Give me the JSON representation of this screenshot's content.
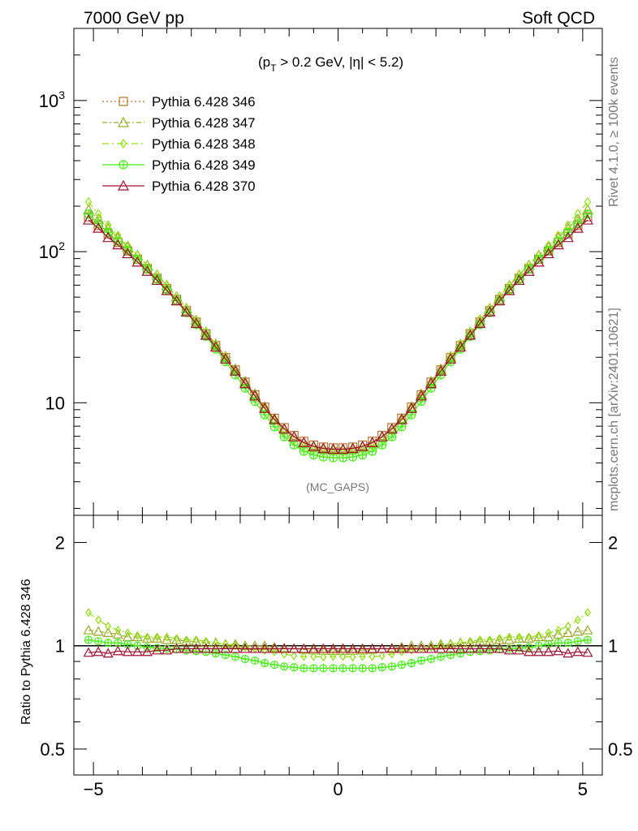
{
  "header": {
    "left": "7000 GeV pp",
    "right": "Soft QCD"
  },
  "annotations": {
    "cut_prefix": "(p",
    "cut_sub": "T",
    "cut_suffix": " > 0.2 GeV, |η| < 5.2)",
    "analysis": "(MC_GAPS)",
    "side_rivet": "Rivet 4.1.0, ≥ 100k events",
    "side_mcplots": "mcplots.cern.ch [arXiv:2401.10621]"
  },
  "ratio_ylabel": "Ratio to Pythia 6.428 346",
  "chart_data": [
    {
      "panel": "main",
      "type": "line",
      "yscale": "log",
      "xlim": [
        -5.4,
        5.4
      ],
      "ylim": [
        1.8,
        3000
      ],
      "x_tick_labels": [
        "−5",
        "0",
        "5"
      ],
      "y_tick_labels": [
        {
          "label": "10",
          "exp": "3",
          "value": 1000
        },
        {
          "label": "10",
          "exp": "2",
          "value": 100
        },
        {
          "label": "10",
          "exp": "",
          "value": 10
        }
      ],
      "x": [
        -5.1,
        -4.9,
        -4.7,
        -4.5,
        -4.3,
        -4.1,
        -3.9,
        -3.7,
        -3.5,
        -3.3,
        -3.1,
        -2.9,
        -2.7,
        -2.5,
        -2.3,
        -2.1,
        -1.9,
        -1.7,
        -1.5,
        -1.3,
        -1.1,
        -0.9,
        -0.7,
        -0.5,
        -0.3,
        -0.1,
        0.1,
        0.3,
        0.5,
        0.7,
        0.9,
        1.1,
        1.3,
        1.5,
        1.7,
        1.9,
        2.1,
        2.3,
        2.5,
        2.7,
        2.9,
        3.1,
        3.3,
        3.5,
        3.7,
        3.9,
        4.1,
        4.3,
        4.5,
        4.7,
        4.9,
        5.1
      ],
      "series": [
        {
          "name": "Pythia 6.428 346",
          "color": "#b8752e",
          "marker": "square",
          "dash": "2,3",
          "values": [
            170,
            149,
            131,
            115,
            101,
            89.0,
            77.3,
            66.6,
            57.0,
            48.3,
            40.7,
            34.2,
            28.6,
            23.9,
            19.9,
            16.5,
            13.7,
            11.3,
            9.37,
            7.9,
            6.84,
            6.08,
            5.56,
            5.25,
            5.09,
            5.03,
            5.03,
            5.09,
            5.25,
            5.56,
            6.08,
            6.84,
            7.9,
            9.37,
            11.3,
            13.7,
            16.5,
            19.9,
            23.9,
            28.6,
            34.2,
            40.7,
            48.3,
            57.0,
            66.6,
            77.3,
            89.0,
            101,
            115,
            131,
            149,
            170
          ]
        },
        {
          "name": "Pythia 6.428 347",
          "color": "#9aaa28",
          "marker": "triangle",
          "dash": "6,3,2,3",
          "values": [
            189,
            164,
            143,
            124,
            107,
            94.3,
            81.2,
            69.9,
            59.6,
            50.2,
            42.1,
            35.2,
            29.3,
            24.4,
            20.2,
            16.7,
            13.8,
            11.4,
            9.37,
            7.82,
            6.74,
            5.96,
            5.42,
            5.09,
            4.93,
            4.86,
            4.86,
            4.93,
            5.09,
            5.42,
            5.96,
            6.74,
            7.82,
            9.37,
            11.4,
            13.8,
            16.7,
            20.2,
            24.4,
            29.3,
            35.2,
            42.1,
            50.2,
            59.6,
            69.9,
            81.2,
            94.3,
            107,
            124,
            143,
            164,
            189
          ]
        },
        {
          "name": "Pythia 6.428 348",
          "color": "#90e010",
          "marker": "diamond",
          "dash": "8,4,2,4",
          "values": [
            213,
            178,
            150,
            128,
            110,
            95.2,
            82.0,
            70.6,
            60.2,
            50.7,
            42.5,
            35.6,
            29.5,
            24.4,
            20.1,
            16.5,
            13.5,
            11.1,
            9.09,
            7.58,
            6.46,
            5.69,
            5.17,
            4.88,
            4.72,
            4.68,
            4.68,
            4.72,
            4.88,
            5.17,
            5.69,
            6.46,
            7.58,
            9.09,
            11.1,
            13.5,
            16.5,
            20.1,
            24.4,
            29.5,
            35.6,
            42.5,
            50.7,
            60.2,
            70.6,
            82.0,
            95.2,
            110,
            128,
            150,
            178,
            213
          ]
        },
        {
          "name": "Pythia 6.428 349",
          "color": "#44ee10",
          "marker": "circle-cross",
          "dash": "",
          "values": [
            177,
            153,
            134,
            117,
            102,
            89.0,
            76.5,
            65.6,
            55.9,
            47.2,
            39.5,
            33.0,
            27.5,
            22.7,
            18.7,
            15.3,
            12.5,
            10.2,
            8.34,
            6.95,
            5.95,
            5.26,
            4.78,
            4.52,
            4.38,
            4.33,
            4.33,
            4.38,
            4.52,
            4.78,
            5.26,
            5.95,
            6.95,
            8.34,
            10.2,
            12.5,
            15.3,
            18.7,
            22.7,
            27.5,
            33.0,
            39.5,
            47.2,
            55.9,
            65.6,
            76.5,
            89.0,
            102,
            117,
            134,
            153,
            177
          ]
        },
        {
          "name": "Pythia 6.428 370",
          "color": "#a01030",
          "marker": "triangle",
          "dash": "",
          "values": [
            162,
            143,
            124,
            111,
            97.0,
            85.4,
            74.2,
            64.6,
            55.3,
            47.3,
            39.9,
            33.5,
            28.0,
            23.4,
            19.5,
            16.2,
            13.4,
            11.1,
            9.18,
            7.74,
            6.7,
            5.96,
            5.45,
            5.14,
            4.99,
            4.93,
            4.93,
            4.99,
            5.14,
            5.45,
            5.96,
            6.7,
            7.74,
            9.18,
            11.1,
            13.4,
            16.2,
            19.5,
            23.4,
            28.0,
            33.5,
            39.9,
            47.3,
            55.3,
            64.6,
            74.2,
            85.4,
            97.0,
            111,
            124,
            143,
            162
          ]
        }
      ]
    },
    {
      "panel": "ratio",
      "type": "line",
      "yscale": "log",
      "ylim": [
        0.42,
        2.4
      ],
      "ylabel": "Ratio to Pythia 6.428 346",
      "y_tick_labels": [
        {
          "label": "2",
          "value": 2
        },
        {
          "label": "1",
          "value": 1
        },
        {
          "label": "0.5",
          "value": 0.5
        }
      ],
      "x_tick_labels": [
        "−5",
        "0",
        "5"
      ],
      "reference_line": 1,
      "series": [
        {
          "name": "Pythia 6.428 346",
          "values": [
            1.0,
            1.0,
            1.0,
            1.0,
            1.0,
            1.0,
            1.0,
            1.0,
            1.0,
            1.0,
            1.0,
            1.0,
            1.0,
            1.0,
            1.0,
            1.0,
            1.0,
            1.0,
            1.0,
            1.0,
            1.0,
            1.0,
            1.0,
            1.0,
            1.0,
            1.0,
            1.0,
            1.0,
            1.0,
            1.0,
            1.0,
            1.0,
            1.0,
            1.0,
            1.0,
            1.0,
            1.0,
            1.0,
            1.0,
            1.0,
            1.0,
            1.0,
            1.0,
            1.0,
            1.0,
            1.0,
            1.0,
            1.0,
            1.0,
            1.0,
            1.0,
            1.0
          ]
        },
        {
          "name": "Pythia 6.428 347",
          "values": [
            1.11,
            1.1,
            1.09,
            1.08,
            1.06,
            1.06,
            1.05,
            1.05,
            1.04,
            1.04,
            1.03,
            1.03,
            1.02,
            1.02,
            1.01,
            1.01,
            1.0,
            1.0,
            1.0,
            0.99,
            0.985,
            0.98,
            0.975,
            0.97,
            0.968,
            0.966,
            0.966,
            0.968,
            0.97,
            0.975,
            0.98,
            0.985,
            0.99,
            1.0,
            1.0,
            1.0,
            1.01,
            1.01,
            1.02,
            1.02,
            1.03,
            1.03,
            1.04,
            1.04,
            1.05,
            1.05,
            1.06,
            1.06,
            1.08,
            1.09,
            1.1,
            1.11
          ]
        },
        {
          "name": "Pythia 6.428 348",
          "values": [
            1.25,
            1.19,
            1.14,
            1.11,
            1.09,
            1.07,
            1.06,
            1.06,
            1.06,
            1.05,
            1.04,
            1.04,
            1.03,
            1.02,
            1.01,
            1.0,
            0.99,
            0.98,
            0.97,
            0.96,
            0.945,
            0.935,
            0.93,
            0.93,
            0.927,
            0.93,
            0.93,
            0.927,
            0.93,
            0.93,
            0.935,
            0.945,
            0.96,
            0.97,
            0.98,
            0.99,
            1.0,
            1.01,
            1.02,
            1.03,
            1.04,
            1.04,
            1.05,
            1.06,
            1.06,
            1.06,
            1.07,
            1.09,
            1.11,
            1.14,
            1.19,
            1.25
          ]
        },
        {
          "name": "Pythia 6.428 349",
          "values": [
            1.04,
            1.03,
            1.02,
            1.02,
            1.01,
            1.0,
            0.99,
            0.985,
            0.98,
            0.977,
            0.97,
            0.965,
            0.96,
            0.95,
            0.94,
            0.93,
            0.915,
            0.905,
            0.89,
            0.88,
            0.87,
            0.865,
            0.86,
            0.86,
            0.86,
            0.86,
            0.86,
            0.86,
            0.86,
            0.86,
            0.865,
            0.87,
            0.88,
            0.89,
            0.905,
            0.915,
            0.93,
            0.94,
            0.95,
            0.96,
            0.965,
            0.97,
            0.977,
            0.98,
            0.985,
            0.99,
            1.0,
            1.01,
            1.02,
            1.02,
            1.03,
            1.04
          ]
        },
        {
          "name": "Pythia 6.428 370",
          "values": [
            0.955,
            0.96,
            0.95,
            0.965,
            0.96,
            0.96,
            0.96,
            0.97,
            0.97,
            0.98,
            0.98,
            0.98,
            0.98,
            0.98,
            0.98,
            0.98,
            0.98,
            0.98,
            0.98,
            0.98,
            0.98,
            0.98,
            0.98,
            0.98,
            0.98,
            0.98,
            0.98,
            0.98,
            0.98,
            0.98,
            0.98,
            0.98,
            0.98,
            0.98,
            0.98,
            0.98,
            0.98,
            0.98,
            0.98,
            0.98,
            0.98,
            0.98,
            0.98,
            0.97,
            0.97,
            0.96,
            0.96,
            0.96,
            0.965,
            0.95,
            0.96,
            0.955
          ]
        }
      ]
    }
  ]
}
